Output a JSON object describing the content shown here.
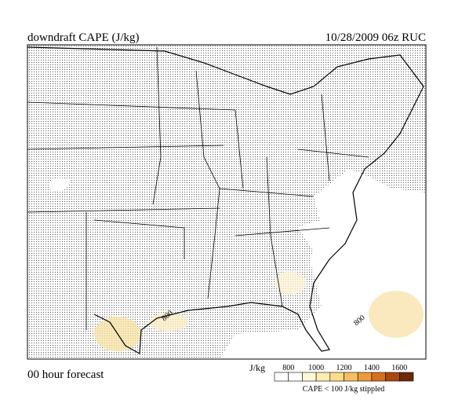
{
  "header": {
    "title": "downdraft CAPE (J/kg)",
    "run": "10/28/2009  06z  RUC"
  },
  "footer": {
    "forecast": "00 hour forecast",
    "note": "CAPE < 100 J/kg stippled"
  },
  "colorbar": {
    "units": "J/kg",
    "ticks": [
      800,
      1000,
      1200,
      1400,
      1600
    ],
    "colors": [
      "#ffffff",
      "#ffffff",
      "#fff8d6",
      "#fdecb0",
      "#fbdc88",
      "#f7c05e",
      "#ec9a3c",
      "#d6701e",
      "#a8480e",
      "#6e2a06"
    ]
  },
  "map": {
    "contour_labels": [
      "800",
      "800"
    ]
  }
}
